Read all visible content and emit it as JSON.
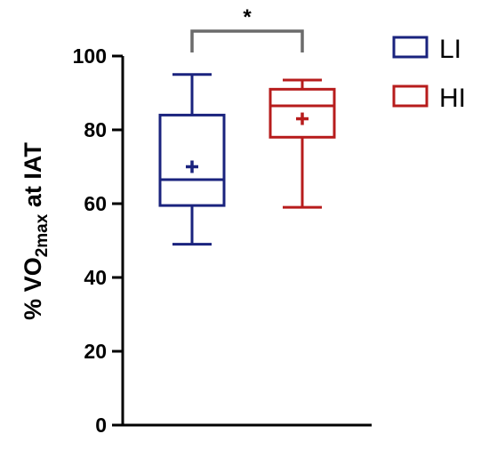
{
  "chart_data": {
    "type": "box",
    "ylabel": {
      "prefix": "% VO",
      "subscript": "2max",
      "suffix": " at IAT"
    },
    "ylim": [
      0,
      100
    ],
    "yticks": [
      0,
      20,
      40,
      60,
      80,
      100
    ],
    "groups": [
      {
        "name": "LI",
        "color": "#1a237e",
        "min": 49,
        "q1": 59.5,
        "median": 66.5,
        "q3": 84,
        "max": 95,
        "mean": 70
      },
      {
        "name": "HI",
        "color": "#b71c1c",
        "min": 59,
        "q1": 78,
        "median": 86.5,
        "q3": 91,
        "max": 93.5,
        "mean": 83
      }
    ],
    "significance": {
      "label": "*",
      "between": [
        "LI",
        "HI"
      ]
    },
    "legend": {
      "position": "top-right"
    },
    "grid": false
  }
}
